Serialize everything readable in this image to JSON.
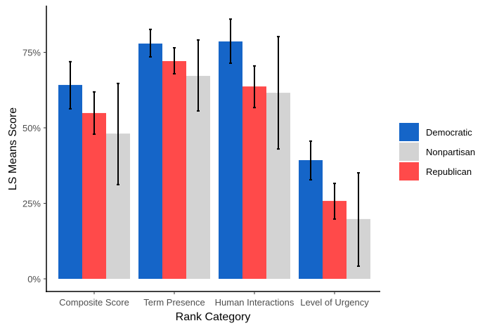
{
  "chart_data": {
    "type": "bar",
    "xlabel": "Rank Category",
    "ylabel": "LS Means Score",
    "ylim": [
      0,
      90
    ],
    "yticks": [
      0,
      25,
      50,
      75
    ],
    "ytick_labels": [
      "0%",
      "25%",
      "50%",
      "75%"
    ],
    "categories": [
      "Composite Score",
      "Term Presence",
      "Human Interactions",
      "Level of Urgency"
    ],
    "grid": false,
    "legend_position": "right",
    "legend_order": [
      "Democratic",
      "Nonpartisan",
      "Republican"
    ],
    "series": [
      {
        "name": "Democratic",
        "color": "#1565c8",
        "values": [
          64.2,
          77.9,
          78.6,
          39.3
        ],
        "err_low": [
          56.3,
          73.5,
          71.4,
          32.8
        ],
        "err_high": [
          71.9,
          82.6,
          86.0,
          45.6
        ]
      },
      {
        "name": "Republican",
        "color": "#ff4a4a",
        "values": [
          54.9,
          72.1,
          63.7,
          25.8
        ],
        "err_low": [
          47.9,
          67.9,
          56.7,
          19.8
        ],
        "err_high": [
          61.9,
          76.5,
          70.5,
          31.6
        ]
      },
      {
        "name": "Nonpartisan",
        "color": "#d3d3d3",
        "values": [
          48.1,
          67.2,
          61.6,
          19.8
        ],
        "err_low": [
          31.2,
          55.6,
          43.0,
          4.2
        ],
        "err_high": [
          64.7,
          79.1,
          80.2,
          35.1
        ]
      }
    ]
  }
}
